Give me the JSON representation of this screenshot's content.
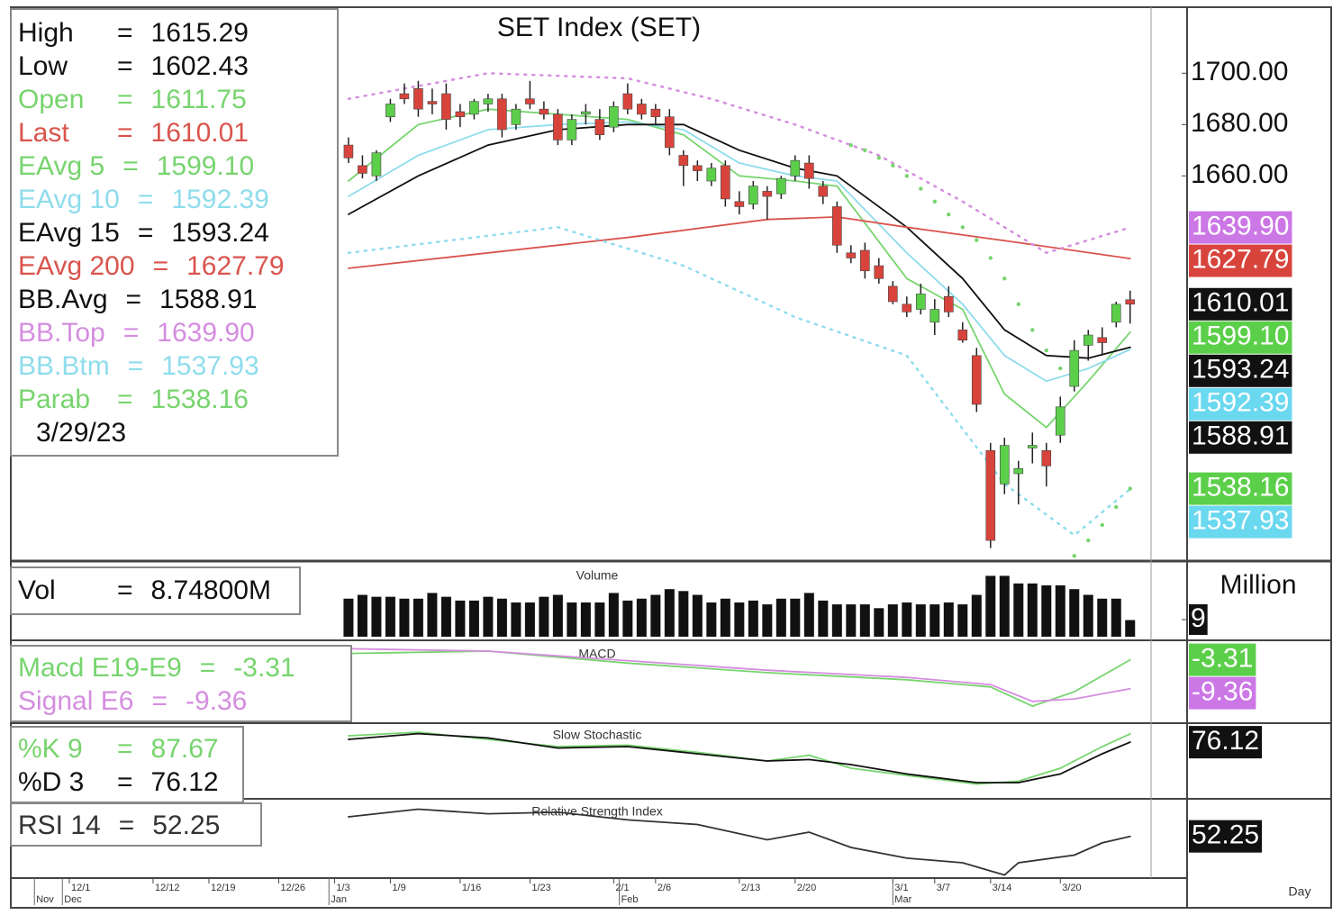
{
  "chart_data": [
    {
      "type": "candlestick",
      "title": "SET Index (SET)",
      "separator": "=",
      "date": "3/29/23",
      "x_axis_label": "Day",
      "xlim": [
        -24,
        57.5
      ],
      "ylim": [
        1511,
        1725
      ],
      "yticks": [
        {
          "value": 1660,
          "label": "1660.00"
        },
        {
          "value": 1680,
          "label": "1680.00"
        },
        {
          "value": 1700,
          "label": "1700.00"
        }
      ],
      "xticks": [
        {
          "value": -20,
          "label": "12/1"
        },
        {
          "value": -14,
          "label": "12/12"
        },
        {
          "value": -10,
          "label": "12/19"
        },
        {
          "value": -5,
          "label": "12/26"
        },
        {
          "value": -1,
          "label": "1/3"
        },
        {
          "value": 3,
          "label": "1/9"
        },
        {
          "value": 8,
          "label": "1/16"
        },
        {
          "value": 13,
          "label": "1/23"
        },
        {
          "value": 19,
          "label": "2/1"
        },
        {
          "value": 22,
          "label": "2/6"
        },
        {
          "value": 28,
          "label": "2/13"
        },
        {
          "value": 32,
          "label": "2/20"
        },
        {
          "value": 39,
          "label": "3/1"
        },
        {
          "value": 42,
          "label": "3/7"
        },
        {
          "value": 46,
          "label": "3/14"
        },
        {
          "value": 51,
          "label": "3/20"
        }
      ],
      "month_ticks": [
        {
          "value": -22.5,
          "label": "Nov"
        },
        {
          "value": -20.5,
          "label": "Dec"
        },
        {
          "value": -1.4,
          "label": "Jan"
        },
        {
          "value": 19.4,
          "label": "Feb"
        },
        {
          "value": 39,
          "label": "Mar"
        }
      ],
      "up_color": "#5ccf4a",
      "down_color": "#d8443c",
      "open": [
        1672,
        1664,
        1660,
        1683,
        1692,
        1694,
        1689,
        1692,
        1685,
        1684,
        1688,
        1690,
        1680,
        1690,
        1686,
        1684,
        1674,
        1684,
        1682,
        1679,
        1692,
        1688,
        1686,
        1683,
        1668,
        1664,
        1658,
        1664,
        1650,
        1649,
        1654,
        1653,
        1660,
        1665,
        1656,
        1648,
        1630,
        1631,
        1625,
        1617,
        1610,
        1608,
        1603,
        1613,
        1600,
        1590,
        1553,
        1540,
        1544,
        1554,
        1553,
        1559,
        1578,
        1594,
        1597,
        1603,
        1611.75
      ],
      "high": [
        1675,
        1668,
        1670,
        1690,
        1696,
        1697,
        1694,
        1696,
        1688,
        1690,
        1692,
        1692,
        1688,
        1697,
        1689,
        1686,
        1684,
        1688,
        1686,
        1689,
        1696,
        1690,
        1688,
        1686,
        1670,
        1666,
        1665,
        1666,
        1654,
        1658,
        1656,
        1660,
        1668,
        1668,
        1658,
        1650,
        1633,
        1634,
        1628,
        1619,
        1613,
        1618,
        1612,
        1617,
        1603,
        1593,
        1556,
        1558,
        1549,
        1560,
        1556,
        1574,
        1596,
        1600,
        1601,
        1611,
        1615.29
      ],
      "low": [
        1665,
        1659,
        1658,
        1681,
        1688,
        1683,
        1684,
        1678,
        1679,
        1682,
        1685,
        1675,
        1678,
        1686,
        1682,
        1672,
        1672,
        1680,
        1674,
        1677,
        1684,
        1682,
        1680,
        1668,
        1656,
        1658,
        1656,
        1648,
        1645,
        1647,
        1643,
        1651,
        1658,
        1655,
        1649,
        1630,
        1626,
        1620,
        1618,
        1610,
        1605,
        1606,
        1598,
        1605,
        1595,
        1568,
        1515,
        1536,
        1532,
        1548,
        1539,
        1556,
        1576,
        1588,
        1590,
        1601,
        1602.43
      ],
      "close": [
        1667,
        1661,
        1669,
        1688,
        1690,
        1686,
        1688,
        1682,
        1683,
        1689,
        1690,
        1678,
        1686,
        1688,
        1684,
        1674,
        1682,
        1685,
        1676,
        1687,
        1686,
        1684,
        1683,
        1671,
        1664,
        1662,
        1663,
        1651,
        1648,
        1656,
        1652,
        1659,
        1666,
        1659,
        1652,
        1633,
        1628,
        1623,
        1620,
        1611,
        1607,
        1614,
        1608,
        1607,
        1596,
        1571,
        1518,
        1555,
        1546,
        1555,
        1547,
        1570,
        1592,
        1598,
        1595,
        1610,
        1610.01
      ],
      "indicators": [
        {
          "name": "High",
          "value": 1615.29,
          "value_label": "1615.29",
          "color": "#111111"
        },
        {
          "name": "Low",
          "value": 1602.43,
          "value_label": "1602.43",
          "color": "#111111"
        },
        {
          "name": "Open",
          "value": 1611.75,
          "value_label": "1611.75",
          "color": "#77d46e"
        },
        {
          "name": "Last",
          "value": 1610.01,
          "value_label": "1610.01",
          "color": "#d9544d",
          "tag_color": "#111111"
        },
        {
          "name": "EAvg 5",
          "value": 1599.1,
          "value_label": "1599.10",
          "color": "#77d46e",
          "tag_color": "#5ccf4a",
          "style": "solid",
          "x": [
            0,
            5,
            10,
            15,
            20,
            24,
            28,
            32,
            35,
            40,
            44,
            47,
            50,
            53,
            56
          ],
          "values": [
            1658,
            1680,
            1686,
            1684,
            1682,
            1676,
            1660,
            1658,
            1656,
            1620,
            1608,
            1575,
            1562,
            1580,
            1599.1
          ]
        },
        {
          "name": "EAvg 10",
          "value": 1592.39,
          "value_label": "1592.39",
          "color": "#8fdcec",
          "tag_color": "#6ad8ef",
          "style": "solid",
          "x": [
            0,
            5,
            10,
            15,
            20,
            24,
            28,
            32,
            35,
            40,
            44,
            47,
            50,
            53,
            56
          ],
          "values": [
            1652,
            1668,
            1678,
            1680,
            1681,
            1678,
            1665,
            1660,
            1658,
            1630,
            1610,
            1590,
            1580,
            1585,
            1592.39
          ]
        },
        {
          "name": "EAvg 15",
          "value": 1593.24,
          "value_label": "1593.24",
          "color": "#111111",
          "tag_color": "#111111",
          "style": "solid",
          "x": [
            0,
            5,
            10,
            15,
            20,
            24,
            28,
            32,
            35,
            40,
            44,
            47,
            50,
            53,
            56
          ],
          "values": [
            1645,
            1660,
            1672,
            1678,
            1680,
            1680,
            1670,
            1663,
            1660,
            1640,
            1620,
            1600,
            1590,
            1589,
            1593.24
          ]
        },
        {
          "name": "EAvg 200",
          "value": 1627.79,
          "value_label": "1627.79",
          "color": "#d9544d",
          "tag_color": "#d8443c",
          "style": "solid",
          "x": [
            0,
            10,
            20,
            30,
            35,
            40,
            48,
            56
          ],
          "values": [
            1624,
            1630,
            1636,
            1643,
            1644,
            1640,
            1634,
            1627.79
          ]
        },
        {
          "name": "BB.Avg",
          "value": 1588.91,
          "value_label": "1588.91",
          "color": "#111111",
          "tag_color": "#111111"
        },
        {
          "name": "BB.Top",
          "value": 1639.9,
          "value_label": "1639.90",
          "color": "#d58de0",
          "tag_color": "#cc77e6",
          "style": "dotted",
          "x": [
            0,
            10,
            20,
            26,
            32,
            38,
            44,
            50,
            56
          ],
          "values": [
            1690,
            1700,
            1698,
            1690,
            1680,
            1668,
            1650,
            1630,
            1639.9
          ]
        },
        {
          "name": "BB.Btm",
          "value": 1537.93,
          "value_label": "1537.93",
          "color": "#8fdcec",
          "tag_color": "#6ad8ef",
          "style": "dotted",
          "x": [
            0,
            15,
            24,
            32,
            40,
            47,
            52,
            56
          ],
          "values": [
            1630,
            1640,
            1625,
            1605,
            1590,
            1540,
            1520,
            1537.93
          ]
        },
        {
          "name": "Parab",
          "value": 1538.16,
          "value_label": "1538.16",
          "color": "#77d46e",
          "tag_color": "#5ccf4a",
          "style": "dots",
          "x": [
            36,
            37,
            38,
            39,
            40,
            41,
            42,
            43,
            44,
            45,
            46,
            47,
            48,
            49,
            50,
            51,
            52,
            53,
            54,
            55,
            56
          ],
          "values": [
            1672,
            1670,
            1667,
            1664,
            1660,
            1655,
            1650,
            1645,
            1640,
            1635,
            1628,
            1620,
            1610,
            1600,
            1592,
            1585,
            1512,
            1518,
            1524,
            1531,
            1538.16
          ]
        }
      ]
    },
    {
      "type": "bar",
      "title": "Volume",
      "unit_label": "Million",
      "separator": "=",
      "xlim": [
        -24,
        57.5
      ],
      "ylim": [
        0,
        37.4
      ],
      "yticks": [
        9
      ],
      "color": "#111111",
      "info": {
        "name": "Vol",
        "value": 8.748,
        "label": "8.74800M"
      },
      "values": [
        20,
        22,
        21,
        21,
        20,
        20,
        23,
        21,
        19,
        19,
        21,
        20,
        18,
        18,
        21,
        22,
        18,
        18,
        18,
        23,
        19,
        20,
        22,
        25,
        24,
        22,
        18,
        20,
        18,
        19,
        17,
        20,
        20,
        23,
        19,
        17,
        17,
        17,
        15,
        17,
        18,
        17,
        17,
        18,
        17,
        22,
        32,
        32,
        28,
        28,
        27,
        27,
        25,
        22,
        20,
        20,
        8.748
      ]
    },
    {
      "type": "line",
      "title": "MACD",
      "separator": "=",
      "xlim": [
        -24,
        57.5
      ],
      "ylim": [
        -16,
        0
      ],
      "series": [
        {
          "name": "Macd E19-E9",
          "color": "#77d46e",
          "tag_color": "#5ccf4a",
          "x": [
            0,
            10,
            20,
            30,
            40,
            46,
            49,
            52,
            56
          ],
          "values": [
            -2,
            -1.5,
            -4,
            -6,
            -7.5,
            -9,
            -13,
            -10,
            -3.31
          ]
        },
        {
          "name": "Signal E6",
          "color": "#d58de0",
          "tag_color": "#cc77e6",
          "x": [
            0,
            10,
            20,
            30,
            40,
            46,
            49,
            52,
            56
          ],
          "values": [
            -1,
            -1.5,
            -3.5,
            -5.5,
            -7,
            -8.5,
            -12,
            -11.5,
            -9.36
          ]
        }
      ]
    },
    {
      "type": "line",
      "title": "Slow Stochastic",
      "separator": "=",
      "xlim": [
        -24,
        57.5
      ],
      "ylim": [
        0,
        100
      ],
      "series": [
        {
          "name": "%K 9",
          "color": "#77d46e",
          "x": [
            0,
            5,
            10,
            15,
            20,
            25,
            30,
            33,
            36,
            40,
            45,
            48,
            51,
            54,
            56
          ],
          "values": [
            85,
            90,
            80,
            70,
            72,
            62,
            50,
            58,
            40,
            30,
            18,
            22,
            40,
            70,
            87.67
          ]
        },
        {
          "name": "%D 3",
          "color": "#111111",
          "tag_color": "#111111",
          "x": [
            0,
            5,
            10,
            15,
            20,
            25,
            30,
            33,
            36,
            40,
            45,
            48,
            51,
            54,
            56
          ],
          "values": [
            80,
            88,
            82,
            68,
            70,
            60,
            50,
            52,
            45,
            32,
            20,
            20,
            32,
            60,
            76.12
          ]
        }
      ]
    },
    {
      "type": "line",
      "title": "Relative Strength Index",
      "separator": "=",
      "xlim": [
        -24,
        57.5
      ],
      "ylim": [
        25,
        75
      ],
      "series": [
        {
          "name": "RSI 14",
          "color": "#333333",
          "tag_color": "#111111",
          "x": [
            0,
            5,
            10,
            15,
            20,
            25,
            30,
            33,
            36,
            40,
            44,
            47,
            48,
            52,
            54,
            56
          ],
          "values": [
            65,
            70,
            67,
            68,
            63,
            60,
            50,
            55,
            45,
            38,
            35,
            27,
            35,
            40,
            48,
            52.25
          ]
        }
      ]
    }
  ]
}
